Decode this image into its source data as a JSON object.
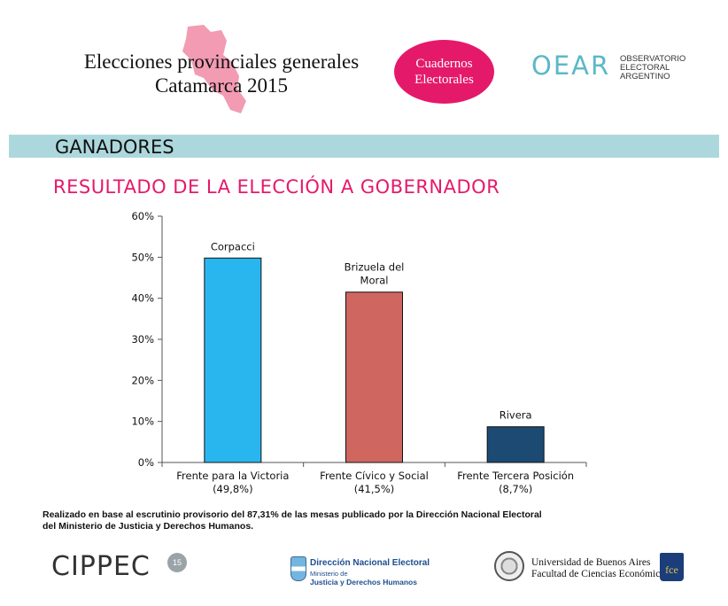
{
  "header": {
    "title_line1": "Elecciones provinciales generales",
    "title_line2": "Catamarca 2015",
    "badge_line1": "Cuadernos",
    "badge_line2": "Electorales",
    "oear_mark": "OEAR",
    "oear_line1": "OBSERVATORIO",
    "oear_line2": "ELECTORAL",
    "oear_line3": "ARGENTINO",
    "province_icon": "catamarca-map-icon"
  },
  "section": {
    "title": "GANADORES"
  },
  "chart_heading": "RESULTADO DE LA ELECCIÓN A GOBERNADOR",
  "chart_data": {
    "type": "bar",
    "title": "RESULTADO DE LA ELECCIÓN A GOBERNADOR",
    "xlabel": "",
    "ylabel": "",
    "ylim": [
      0,
      60
    ],
    "yticks": [
      0,
      10,
      20,
      30,
      40,
      50,
      60
    ],
    "ytick_labels": [
      "0%",
      "10%",
      "20%",
      "30%",
      "40%",
      "50%",
      "60%"
    ],
    "grid": false,
    "categories": [
      "Frente para la Victoria",
      "Frente Cívico y Social",
      "Frente Tercera Posición"
    ],
    "category_values": [
      "(49,8%)",
      "(41,5%)",
      "(8,7%)"
    ],
    "values": [
      49.8,
      41.5,
      8.7
    ],
    "bar_labels": [
      [
        "Corpacci"
      ],
      [
        "Brizuela del",
        "Moral"
      ],
      [
        "Rivera"
      ]
    ],
    "colors": [
      "#29b6ef",
      "#cf6660",
      "#1c4a72"
    ]
  },
  "footer": {
    "note_line1": "Realizado en base al escrutinio provisorio del 87,31% de las mesas publicado por la Dirección Nacional Electoral",
    "note_line2": "del Ministerio de Justicia y Derechos Humanos.",
    "cippec": "CIPPEC",
    "cippec_badge": "15",
    "dne_line1": "Dirección Nacional Electoral",
    "dne_line2": "Ministerio de",
    "dne_line3": "Justicia y Derechos Humanos",
    "uba_line1": "Universidad de Buenos Aires",
    "uba_line2": "Facultad de Ciencias Económicas",
    "fce": "fce"
  },
  "colors": {
    "accent": "#e5196a",
    "section_bar": "#acd8dd",
    "oear": "#5bb8c8"
  }
}
